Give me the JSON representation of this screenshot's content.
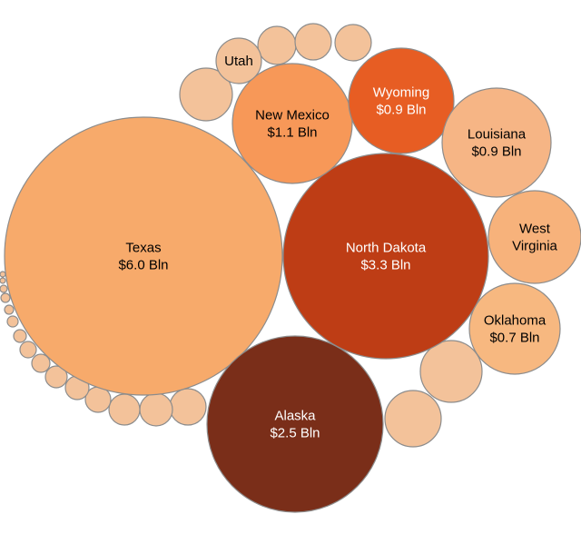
{
  "chart_data": {
    "type": "bubble",
    "unit": "Bln",
    "bubbles": [
      {
        "name": "Texas",
        "value_label": "$6.0 Bln",
        "value": 6.0,
        "color": "#f7aa6b",
        "text_color": "#000000"
      },
      {
        "name": "North Dakota",
        "value_label": "$3.3 Bln",
        "value": 3.3,
        "color": "#be3d15",
        "text_color": "#ffffff"
      },
      {
        "name": "Alaska",
        "value_label": "$2.5 Bln",
        "value": 2.5,
        "color": "#7a2e19",
        "text_color": "#ffffff"
      },
      {
        "name": "New Mexico",
        "value_label": "$1.1 Bln",
        "value": 1.1,
        "color": "#f79858",
        "text_color": "#000000"
      },
      {
        "name": "Wyoming",
        "value_label": "$0.9 Bln",
        "value": 0.9,
        "color": "#e75d23",
        "text_color": "#ffffff"
      },
      {
        "name": "Louisiana",
        "value_label": "$0.9 Bln",
        "value": 0.9,
        "color": "#f6b585",
        "text_color": "#000000"
      },
      {
        "name": "West Virginia",
        "value_label": "",
        "value": null,
        "color": "#f7b27b",
        "text_color": "#000000"
      },
      {
        "name": "Oklahoma",
        "value_label": "$0.7 Bln",
        "value": 0.7,
        "color": "#f7b880",
        "text_color": "#000000"
      },
      {
        "name": "Utah",
        "value_label": "",
        "value": null,
        "color": "#f3c29a",
        "text_color": "#000000"
      }
    ],
    "unlabeled_bubble_color": "#f3c29a"
  }
}
